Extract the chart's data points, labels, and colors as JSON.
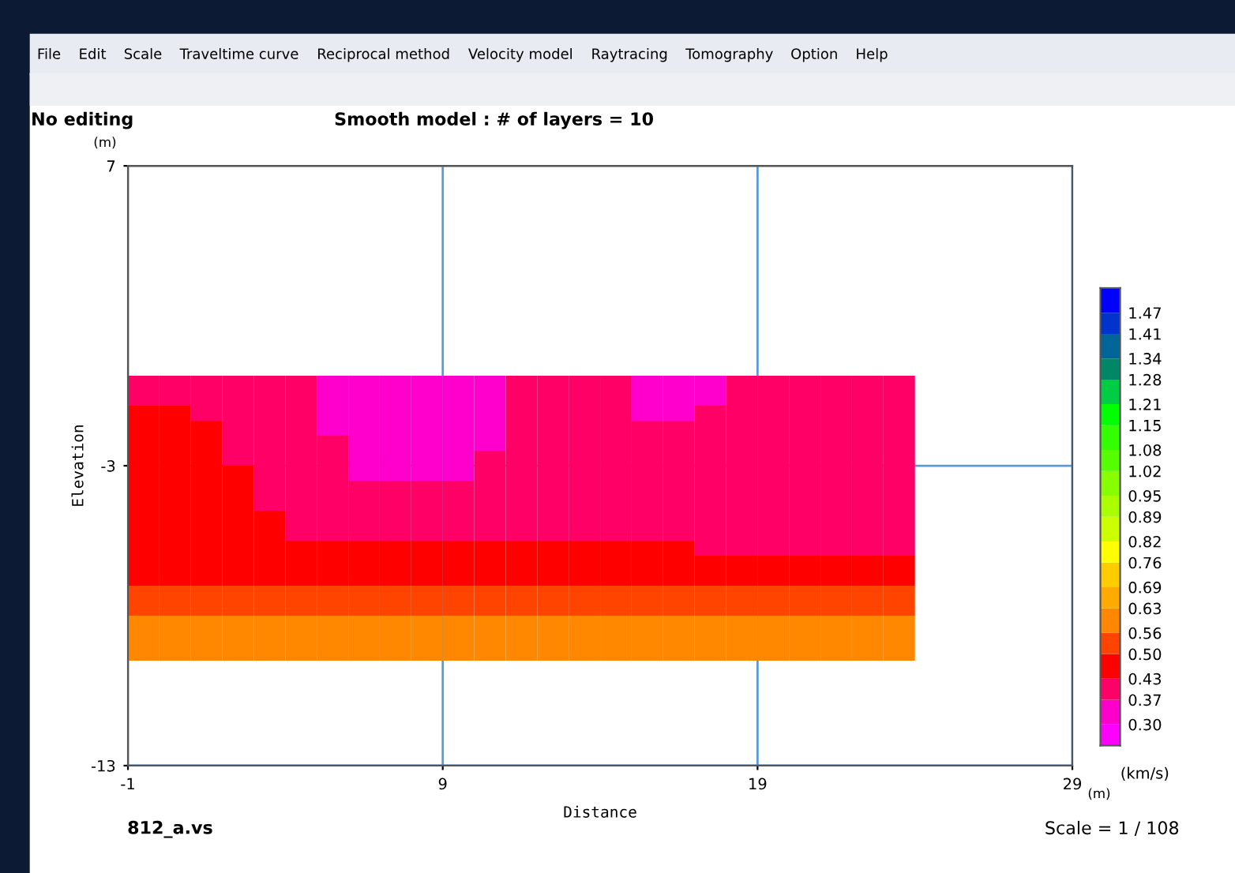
{
  "chart_data": {
    "type": "heatmap",
    "title": "Smooth model : # of layers = 10",
    "xlabel": "Distance",
    "ylabel": "Elevation",
    "clabel": "(km/s)",
    "annotations": [
      "No editing",
      "812_a.vs",
      "Scale = 1 / 108",
      "(m)",
      "(m)",
      "File",
      "Edit",
      "Scale",
      "Traveltime curve",
      "Reciprocal method",
      "Velocity model",
      "Raytracing",
      "Tomography",
      "Option",
      "Help"
    ],
    "x": [
      -0.5,
      0.5,
      1.5,
      2.5,
      3.5,
      4.5,
      5.5,
      6.5,
      7.5,
      8.5,
      9.5,
      10.5,
      11.5,
      12.5,
      13.5,
      14.5,
      15.5,
      16.5,
      17.5,
      18.5,
      19.5,
      20.5,
      21.5,
      22.5,
      23.5
    ],
    "y": [
      -0.25,
      -0.75,
      -1.25,
      -1.75,
      -2.25,
      -2.75,
      -3.25,
      -3.75,
      -4.25,
      -4.75,
      -5.25,
      -5.75,
      -6.25,
      -6.75,
      -7.25,
      -7.75,
      -8.25,
      -8.75,
      -9.25
    ],
    "cells": [
      [
        0.4,
        0.4,
        0.4,
        0.4,
        0.4,
        0.4,
        0.34,
        0.34,
        0.34,
        0.34,
        0.34,
        0.34,
        0.4,
        0.4,
        0.4,
        0.4,
        0.34,
        0.34,
        0.34,
        0.4,
        0.4,
        0.4,
        0.4,
        0.4,
        0.4
      ],
      [
        0.4,
        0.4,
        0.4,
        0.4,
        0.4,
        0.4,
        0.34,
        0.34,
        0.34,
        0.34,
        0.34,
        0.34,
        0.4,
        0.4,
        0.4,
        0.4,
        0.34,
        0.34,
        0.34,
        0.4,
        0.4,
        0.4,
        0.4,
        0.4,
        0.4
      ],
      [
        0.46,
        0.46,
        0.4,
        0.4,
        0.4,
        0.4,
        0.34,
        0.34,
        0.34,
        0.34,
        0.34,
        0.34,
        0.4,
        0.4,
        0.4,
        0.4,
        0.34,
        0.34,
        0.4,
        0.4,
        0.4,
        0.4,
        0.4,
        0.4,
        0.4
      ],
      [
        0.46,
        0.46,
        0.46,
        0.4,
        0.4,
        0.4,
        0.34,
        0.34,
        0.34,
        0.34,
        0.34,
        0.34,
        0.4,
        0.4,
        0.4,
        0.4,
        0.4,
        0.4,
        0.4,
        0.4,
        0.4,
        0.4,
        0.4,
        0.4,
        0.4
      ],
      [
        0.46,
        0.46,
        0.46,
        0.4,
        0.4,
        0.4,
        0.4,
        0.34,
        0.34,
        0.34,
        0.34,
        0.34,
        0.4,
        0.4,
        0.4,
        0.4,
        0.4,
        0.4,
        0.4,
        0.4,
        0.4,
        0.4,
        0.4,
        0.4,
        0.4
      ],
      [
        0.46,
        0.46,
        0.46,
        0.4,
        0.4,
        0.4,
        0.4,
        0.34,
        0.34,
        0.34,
        0.34,
        0.4,
        0.4,
        0.4,
        0.4,
        0.4,
        0.4,
        0.4,
        0.4,
        0.4,
        0.4,
        0.4,
        0.4,
        0.4,
        0.4
      ],
      [
        0.46,
        0.46,
        0.46,
        0.46,
        0.4,
        0.4,
        0.4,
        0.34,
        0.34,
        0.34,
        0.34,
        0.4,
        0.4,
        0.4,
        0.4,
        0.4,
        0.4,
        0.4,
        0.4,
        0.4,
        0.4,
        0.4,
        0.4,
        0.4,
        0.4
      ],
      [
        0.46,
        0.46,
        0.46,
        0.46,
        0.4,
        0.4,
        0.4,
        0.4,
        0.4,
        0.4,
        0.4,
        0.4,
        0.4,
        0.4,
        0.4,
        0.4,
        0.4,
        0.4,
        0.4,
        0.4,
        0.4,
        0.4,
        0.4,
        0.4,
        0.4
      ],
      [
        0.46,
        0.46,
        0.46,
        0.46,
        0.4,
        0.4,
        0.4,
        0.4,
        0.4,
        0.4,
        0.4,
        0.4,
        0.4,
        0.4,
        0.4,
        0.4,
        0.4,
        0.4,
        0.4,
        0.4,
        0.4,
        0.4,
        0.4,
        0.4,
        0.4
      ],
      [
        0.46,
        0.46,
        0.46,
        0.46,
        0.46,
        0.4,
        0.4,
        0.4,
        0.4,
        0.4,
        0.4,
        0.4,
        0.4,
        0.4,
        0.4,
        0.4,
        0.4,
        0.4,
        0.4,
        0.4,
        0.4,
        0.4,
        0.4,
        0.4,
        0.4
      ],
      [
        0.46,
        0.46,
        0.46,
        0.46,
        0.46,
        0.4,
        0.4,
        0.4,
        0.4,
        0.4,
        0.4,
        0.4,
        0.4,
        0.4,
        0.4,
        0.4,
        0.4,
        0.4,
        0.4,
        0.4,
        0.4,
        0.4,
        0.4,
        0.4,
        0.4
      ],
      [
        0.46,
        0.46,
        0.46,
        0.46,
        0.46,
        0.46,
        0.46,
        0.46,
        0.46,
        0.46,
        0.46,
        0.46,
        0.46,
        0.46,
        0.46,
        0.46,
        0.46,
        0.46,
        0.4,
        0.4,
        0.4,
        0.4,
        0.4,
        0.4,
        0.4
      ],
      [
        0.46,
        0.46,
        0.46,
        0.46,
        0.46,
        0.46,
        0.46,
        0.46,
        0.46,
        0.46,
        0.46,
        0.46,
        0.46,
        0.46,
        0.46,
        0.46,
        0.46,
        0.46,
        0.46,
        0.46,
        0.46,
        0.46,
        0.46,
        0.46,
        0.46
      ],
      [
        0.46,
        0.46,
        0.46,
        0.46,
        0.46,
        0.46,
        0.46,
        0.46,
        0.46,
        0.46,
        0.46,
        0.46,
        0.46,
        0.46,
        0.46,
        0.46,
        0.46,
        0.46,
        0.46,
        0.46,
        0.46,
        0.46,
        0.46,
        0.46,
        0.46
      ],
      [
        0.53,
        0.53,
        0.53,
        0.53,
        0.53,
        0.53,
        0.53,
        0.53,
        0.53,
        0.53,
        0.53,
        0.53,
        0.53,
        0.53,
        0.53,
        0.53,
        0.53,
        0.53,
        0.53,
        0.53,
        0.53,
        0.53,
        0.53,
        0.53,
        0.53
      ],
      [
        0.53,
        0.53,
        0.53,
        0.53,
        0.53,
        0.53,
        0.53,
        0.53,
        0.53,
        0.53,
        0.53,
        0.53,
        0.53,
        0.53,
        0.53,
        0.53,
        0.53,
        0.53,
        0.53,
        0.53,
        0.53,
        0.53,
        0.53,
        0.53,
        0.53
      ],
      [
        0.6,
        0.6,
        0.6,
        0.6,
        0.6,
        0.6,
        0.6,
        0.6,
        0.6,
        0.6,
        0.6,
        0.6,
        0.6,
        0.6,
        0.6,
        0.6,
        0.6,
        0.6,
        0.6,
        0.6,
        0.6,
        0.6,
        0.6,
        0.6,
        0.6
      ],
      [
        0.6,
        0.6,
        0.6,
        0.6,
        0.6,
        0.6,
        0.6,
        0.6,
        0.6,
        0.6,
        0.6,
        0.6,
        0.6,
        0.6,
        0.6,
        0.6,
        0.6,
        0.6,
        0.6,
        0.6,
        0.6,
        0.6,
        0.6,
        0.6,
        0.6
      ],
      [
        0.6,
        0.6,
        0.6,
        0.6,
        0.6,
        0.6,
        0.6,
        0.6,
        0.6,
        0.6,
        0.6,
        0.6,
        0.6,
        0.6,
        0.6,
        0.6,
        0.6,
        0.6,
        0.6,
        0.6,
        0.6,
        0.6,
        0.6,
        0.6,
        0.6
      ]
    ],
    "clim": [
      0.24,
      1.54
    ],
    "cticks": [
      {
        "value": 0.3,
        "label": "0.30"
      },
      0.37,
      0.43,
      {
        "value": 0.5,
        "label": "0.50"
      },
      0.56,
      0.63,
      0.69,
      0.76,
      0.82,
      0.89,
      0.95,
      1.02,
      1.08,
      1.15,
      1.21,
      1.28,
      1.34,
      1.41,
      1.47
    ],
    "colors": [
      "#ff00ff",
      "#ff00cc",
      "#ff0066",
      "#ff0000",
      "#ff4400",
      "#ff8800",
      "#ffaa00",
      "#ffcc00",
      "#ffff00",
      "#ccff00",
      "#aaff00",
      "#88ff00",
      "#55ff00",
      "#33ff00",
      "#00ff00",
      "#00cc44",
      "#008866",
      "#006699",
      "#0033cc",
      "#0000ff"
    ],
    "xlim": [
      -1,
      29
    ],
    "ylim": [
      -13,
      7
    ],
    "xticks": [
      -1,
      9,
      19,
      29
    ],
    "yticks": [
      -13,
      -3,
      7
    ],
    "grid": true
  }
}
